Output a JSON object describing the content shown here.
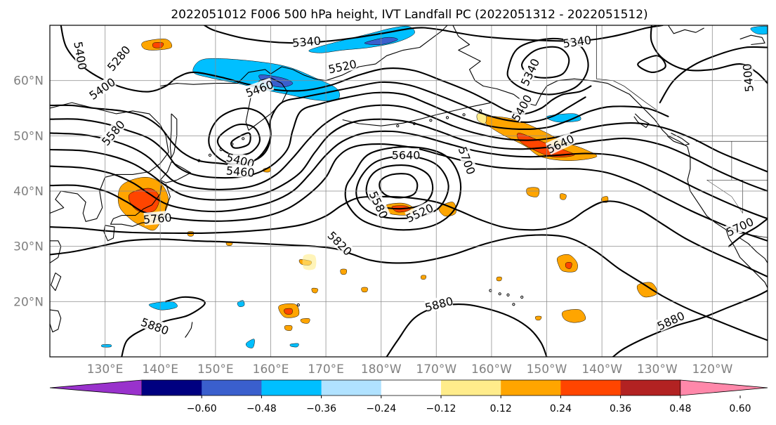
{
  "title": "2022051012 F006 500 hPa height, IVT Landfall PC (2022051312 - 2022051512)",
  "map": {
    "lon_range": [
      120,
      250
    ],
    "lat_range": [
      10,
      70
    ],
    "lat_ticks": [
      {
        "value": 20,
        "label": "20°N"
      },
      {
        "value": 30,
        "label": "30°N"
      },
      {
        "value": 40,
        "label": "40°N"
      },
      {
        "value": 50,
        "label": "50°N"
      },
      {
        "value": 60,
        "label": "60°N"
      }
    ],
    "lon_ticks": [
      {
        "value": 130,
        "label": "130°E"
      },
      {
        "value": 140,
        "label": "140°E"
      },
      {
        "value": 150,
        "label": "150°E"
      },
      {
        "value": 160,
        "label": "160°E"
      },
      {
        "value": 170,
        "label": "170°E"
      },
      {
        "value": 180,
        "label": "180°W"
      },
      {
        "value": 190,
        "label": "170°W"
      },
      {
        "value": 200,
        "label": "160°W"
      },
      {
        "value": 210,
        "label": "150°W"
      },
      {
        "value": 220,
        "label": "140°W"
      },
      {
        "value": 230,
        "label": "130°W"
      },
      {
        "value": 240,
        "label": "120°W"
      }
    ],
    "height_contours_dam": [
      5280,
      5340,
      5400,
      5460,
      5520,
      5580,
      5640,
      5700,
      5760,
      5820,
      5880
    ],
    "contour_labels": [
      {
        "text": "5340",
        "lon": 166.5,
        "lat": 67.0,
        "angle": -5
      },
      {
        "text": "5340",
        "lon": 215.5,
        "lat": 67.0,
        "angle": -8
      },
      {
        "text": "5400",
        "lon": 125.5,
        "lat": 64.5,
        "angle": 80
      },
      {
        "text": "5280",
        "lon": 132.5,
        "lat": 64.0,
        "angle": -50
      },
      {
        "text": "5520",
        "lon": 173.0,
        "lat": 62.5,
        "angle": -12
      },
      {
        "text": "5400",
        "lon": 129.5,
        "lat": 58.5,
        "angle": -35
      },
      {
        "text": "5460",
        "lon": 158.0,
        "lat": 58.5,
        "angle": -20
      },
      {
        "text": "5340",
        "lon": 207.0,
        "lat": 61.5,
        "angle": -65
      },
      {
        "text": "5400",
        "lon": 205.5,
        "lat": 55.0,
        "angle": -60
      },
      {
        "text": "5580",
        "lon": 131.5,
        "lat": 50.5,
        "angle": -50
      },
      {
        "text": "5640",
        "lon": 212.5,
        "lat": 48.5,
        "angle": -25
      },
      {
        "text": "5400",
        "lon": 154.5,
        "lat": 45.5,
        "angle": 15
      },
      {
        "text": "5460",
        "lon": 154.5,
        "lat": 43.5,
        "angle": 5
      },
      {
        "text": "5640",
        "lon": 184.5,
        "lat": 46.5,
        "angle": 0
      },
      {
        "text": "5700",
        "lon": 195.5,
        "lat": 45.5,
        "angle": 70
      },
      {
        "text": "5580",
        "lon": 179.5,
        "lat": 37.5,
        "angle": 65
      },
      {
        "text": "5520",
        "lon": 187.0,
        "lat": 36.0,
        "angle": -25
      },
      {
        "text": "5760",
        "lon": 139.5,
        "lat": 35.0,
        "angle": -5
      },
      {
        "text": "5820",
        "lon": 172.5,
        "lat": 30.5,
        "angle": 45
      },
      {
        "text": "5880",
        "lon": 190.5,
        "lat": 19.5,
        "angle": -15
      },
      {
        "text": "5880",
        "lon": 139.0,
        "lat": 15.5,
        "angle": 20
      },
      {
        "text": "5880",
        "lon": 232.5,
        "lat": 16.5,
        "angle": -25
      },
      {
        "text": "5700",
        "lon": 245.0,
        "lat": 33.5,
        "angle": -25
      },
      {
        "text": "5400",
        "lon": 246.5,
        "lat": 60.5,
        "angle": -95
      }
    ]
  },
  "colorbar": {
    "tick_labels": [
      "−0.60",
      "−0.48",
      "−0.36",
      "−0.24",
      "−0.12",
      "0.12",
      "0.24",
      "0.36",
      "0.48",
      "0.60"
    ],
    "low_extend_color": "#9932cc",
    "high_extend_color": "#ff88aa",
    "colors": [
      "#000080",
      "#3a5fcd",
      "#00bfff",
      "#b0e2ff",
      "#ffffff",
      "#ffec8b",
      "#ffa500",
      "#ff4500",
      "#b22222"
    ]
  },
  "colors": {
    "neg_strong": "#3a5fcd",
    "neg_mid": "#00bfff",
    "neg_weak": "#b0e2ff",
    "pos_weak": "#ffec8b",
    "pos_mid": "#ffa500",
    "pos_strong": "#ff4500",
    "pos_extreme": "#b22222"
  }
}
